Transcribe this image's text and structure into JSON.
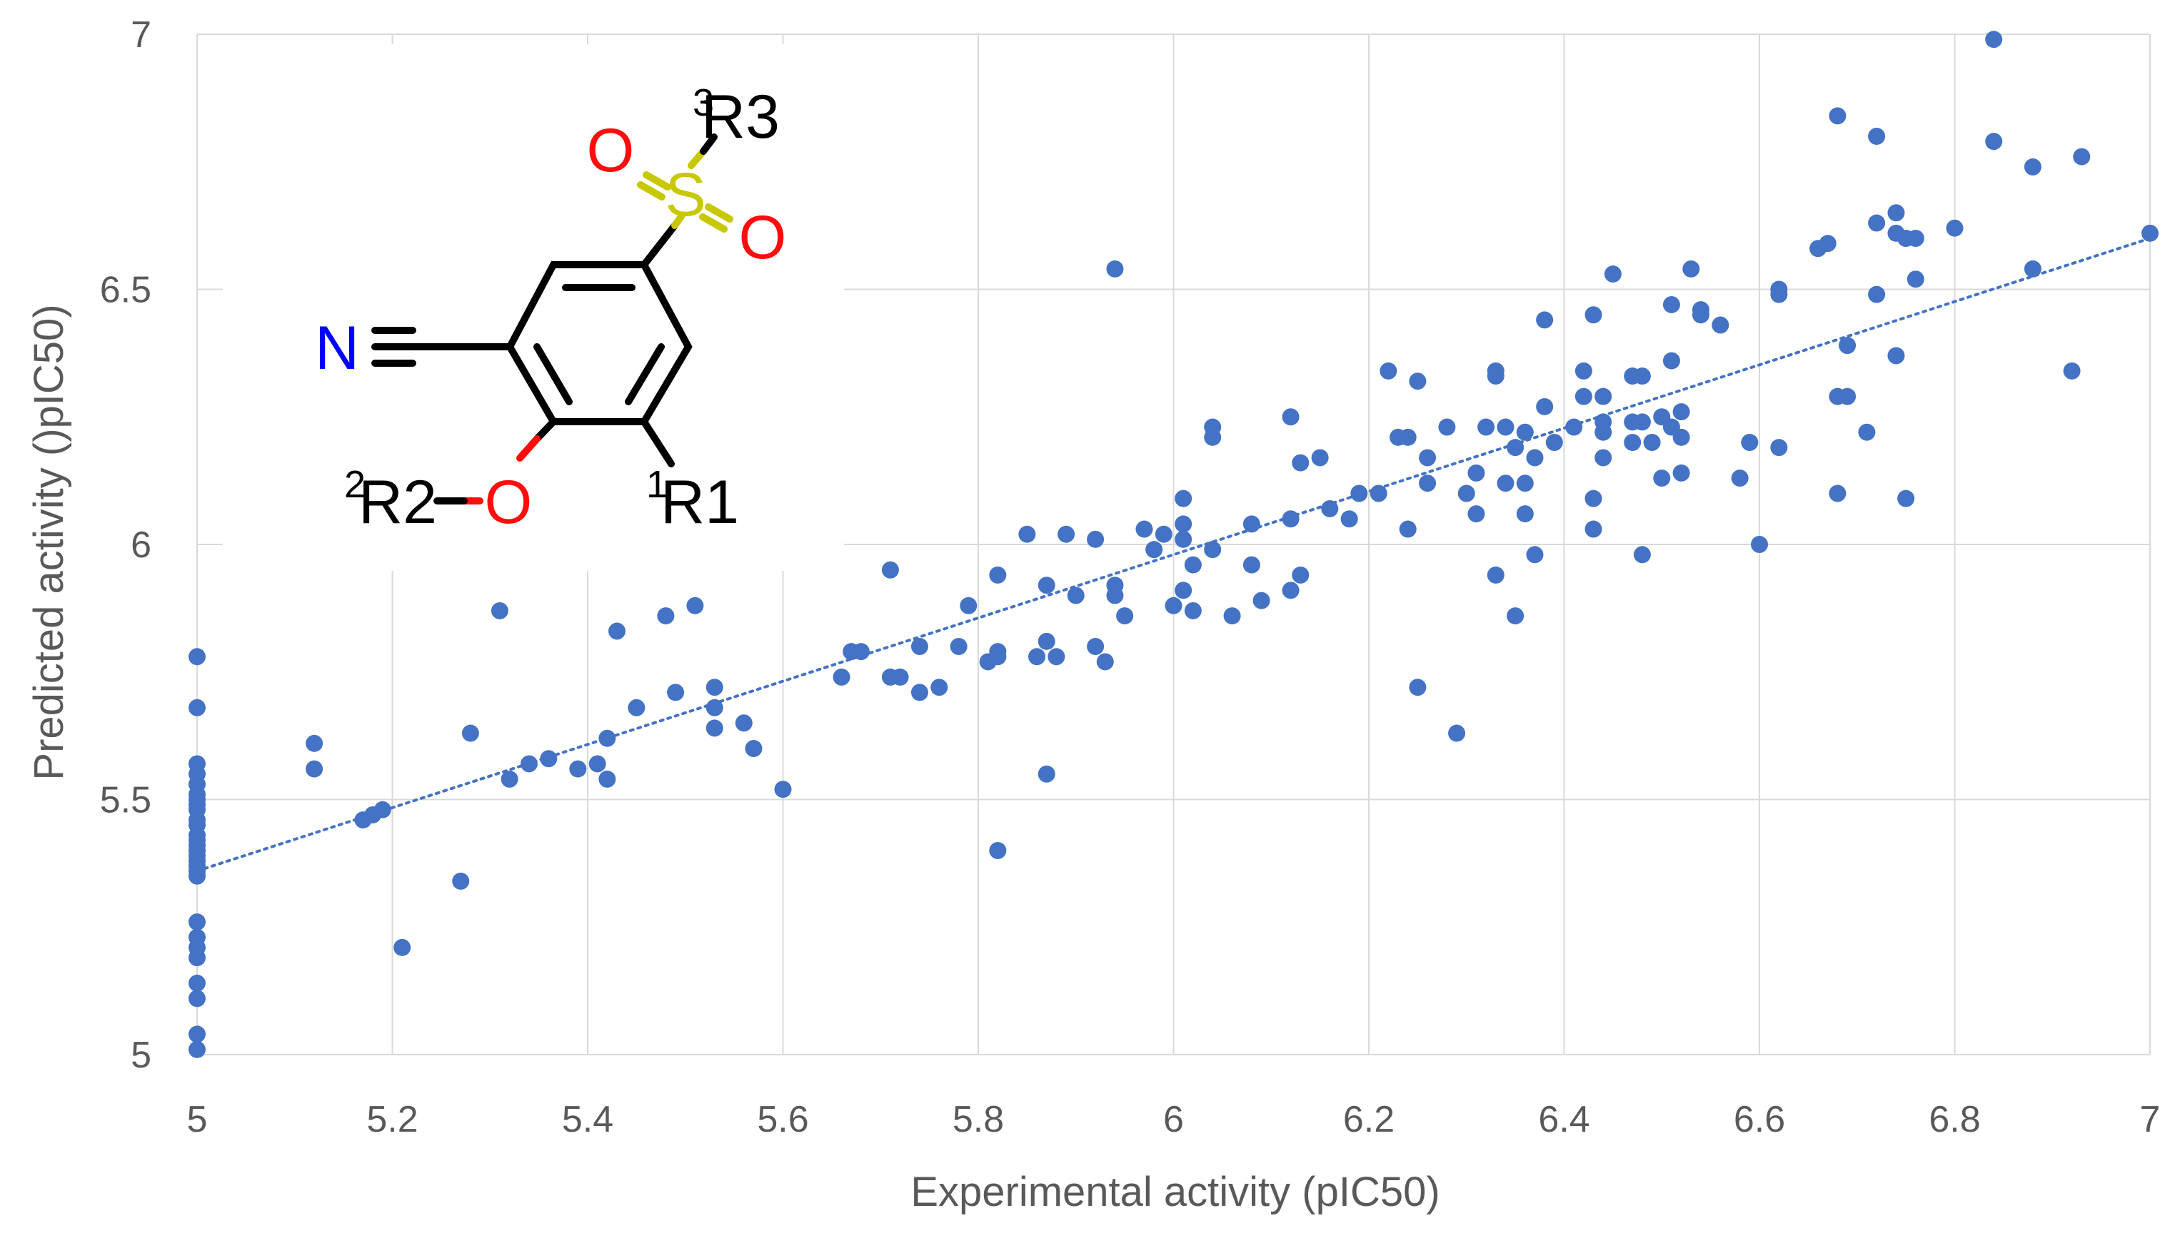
{
  "colors": {
    "point": "#4472C4",
    "trendline": "#4472C4",
    "grid": "#D9D9D9",
    "axis_text": "#595959",
    "oxygen": "#FF0D0D",
    "sulfur": "#C8C800",
    "nitrogen": "#0000FF",
    "bond": "#000000"
  },
  "chart_data": {
    "type": "scatter",
    "title": "",
    "xlabel": "Experimental activity (pIC50)",
    "ylabel": "Predicted activity ()pIC50)",
    "xlim": [
      5,
      7
    ],
    "ylim": [
      5,
      7
    ],
    "xticks": [
      "5",
      "5.2",
      "5.4",
      "5.6",
      "5.8",
      "6",
      "6.2",
      "6.4",
      "6.6",
      "6.8",
      "7"
    ],
    "yticks": [
      "5",
      "5.5",
      "6",
      "6.5",
      "7"
    ],
    "grid": true,
    "legend": "none",
    "trendline": {
      "type": "linear",
      "style": "dotted",
      "x": [
        5,
        7
      ],
      "y": [
        5.36,
        6.6
      ]
    },
    "series": [
      {
        "name": "compounds",
        "points": [
          [
            5.0,
            5.78
          ],
          [
            5.0,
            5.68
          ],
          [
            5.0,
            5.57
          ],
          [
            5.0,
            5.55
          ],
          [
            5.0,
            5.53
          ],
          [
            5.0,
            5.51
          ],
          [
            5.0,
            5.5
          ],
          [
            5.0,
            5.49
          ],
          [
            5.0,
            5.48
          ],
          [
            5.0,
            5.46
          ],
          [
            5.0,
            5.45
          ],
          [
            5.0,
            5.43
          ],
          [
            5.0,
            5.42
          ],
          [
            5.0,
            5.41
          ],
          [
            5.0,
            5.4
          ],
          [
            5.0,
            5.39
          ],
          [
            5.0,
            5.38
          ],
          [
            5.0,
            5.37
          ],
          [
            5.0,
            5.36
          ],
          [
            5.0,
            5.35
          ],
          [
            5.0,
            5.26
          ],
          [
            5.0,
            5.23
          ],
          [
            5.0,
            5.21
          ],
          [
            5.0,
            5.19
          ],
          [
            5.0,
            5.14
          ],
          [
            5.0,
            5.11
          ],
          [
            5.0,
            5.04
          ],
          [
            5.0,
            5.01
          ],
          [
            5.12,
            5.61
          ],
          [
            5.12,
            5.56
          ],
          [
            5.17,
            5.46
          ],
          [
            5.18,
            5.47
          ],
          [
            5.19,
            5.48
          ],
          [
            5.21,
            5.21
          ],
          [
            5.27,
            5.34
          ],
          [
            5.28,
            5.63
          ],
          [
            5.31,
            5.87
          ],
          [
            5.32,
            5.54
          ],
          [
            5.34,
            5.57
          ],
          [
            5.36,
            5.58
          ],
          [
            5.39,
            5.56
          ],
          [
            5.41,
            5.57
          ],
          [
            5.42,
            5.62
          ],
          [
            5.42,
            5.54
          ],
          [
            5.43,
            5.83
          ],
          [
            5.45,
            5.68
          ],
          [
            5.48,
            5.86
          ],
          [
            5.49,
            5.71
          ],
          [
            5.51,
            5.88
          ],
          [
            5.53,
            5.72
          ],
          [
            5.53,
            5.68
          ],
          [
            5.53,
            5.64
          ],
          [
            5.56,
            5.65
          ],
          [
            5.57,
            5.6
          ],
          [
            5.6,
            5.52
          ],
          [
            5.66,
            5.74
          ],
          [
            5.67,
            5.79
          ],
          [
            5.68,
            5.79
          ],
          [
            5.71,
            5.95
          ],
          [
            5.71,
            5.74
          ],
          [
            5.72,
            5.74
          ],
          [
            5.74,
            5.71
          ],
          [
            5.74,
            5.8
          ],
          [
            5.76,
            5.72
          ],
          [
            5.78,
            5.8
          ],
          [
            5.79,
            5.88
          ],
          [
            5.81,
            5.77
          ],
          [
            5.82,
            5.79
          ],
          [
            5.82,
            5.78
          ],
          [
            5.82,
            5.94
          ],
          [
            5.82,
            5.4
          ],
          [
            5.85,
            6.02
          ],
          [
            5.86,
            5.78
          ],
          [
            5.87,
            5.92
          ],
          [
            5.87,
            5.81
          ],
          [
            5.87,
            5.55
          ],
          [
            5.88,
            5.78
          ],
          [
            5.89,
            6.02
          ],
          [
            5.9,
            5.9
          ],
          [
            5.92,
            6.01
          ],
          [
            5.92,
            5.8
          ],
          [
            5.93,
            5.77
          ],
          [
            5.94,
            6.54
          ],
          [
            5.94,
            5.92
          ],
          [
            5.94,
            5.9
          ],
          [
            5.95,
            5.86
          ],
          [
            5.97,
            6.03
          ],
          [
            5.98,
            5.99
          ],
          [
            5.99,
            6.02
          ],
          [
            6.0,
            5.88
          ],
          [
            6.01,
            6.09
          ],
          [
            6.01,
            6.04
          ],
          [
            6.01,
            6.01
          ],
          [
            6.01,
            5.91
          ],
          [
            6.02,
            5.96
          ],
          [
            6.02,
            5.87
          ],
          [
            6.04,
            6.23
          ],
          [
            6.04,
            6.21
          ],
          [
            6.04,
            5.99
          ],
          [
            6.06,
            5.86
          ],
          [
            6.08,
            6.04
          ],
          [
            6.08,
            5.96
          ],
          [
            6.09,
            5.89
          ],
          [
            6.12,
            6.25
          ],
          [
            6.12,
            6.05
          ],
          [
            6.12,
            5.91
          ],
          [
            6.13,
            6.16
          ],
          [
            6.13,
            5.94
          ],
          [
            6.15,
            6.17
          ],
          [
            6.16,
            6.07
          ],
          [
            6.18,
            6.05
          ],
          [
            6.19,
            6.1
          ],
          [
            6.21,
            6.1
          ],
          [
            6.22,
            6.34
          ],
          [
            6.23,
            6.21
          ],
          [
            6.24,
            6.21
          ],
          [
            6.24,
            6.03
          ],
          [
            6.25,
            6.32
          ],
          [
            6.25,
            5.72
          ],
          [
            6.26,
            6.17
          ],
          [
            6.26,
            6.12
          ],
          [
            6.28,
            6.23
          ],
          [
            6.29,
            5.63
          ],
          [
            6.3,
            6.1
          ],
          [
            6.31,
            6.14
          ],
          [
            6.31,
            6.06
          ],
          [
            6.32,
            6.23
          ],
          [
            6.33,
            6.34
          ],
          [
            6.33,
            6.33
          ],
          [
            6.33,
            5.94
          ],
          [
            6.34,
            6.23
          ],
          [
            6.34,
            6.12
          ],
          [
            6.35,
            6.19
          ],
          [
            6.35,
            5.86
          ],
          [
            6.36,
            6.22
          ],
          [
            6.36,
            6.12
          ],
          [
            6.36,
            6.06
          ],
          [
            6.37,
            6.17
          ],
          [
            6.37,
            5.98
          ],
          [
            6.38,
            6.44
          ],
          [
            6.38,
            6.27
          ],
          [
            6.39,
            6.2
          ],
          [
            6.41,
            6.23
          ],
          [
            6.42,
            6.34
          ],
          [
            6.42,
            6.29
          ],
          [
            6.43,
            6.45
          ],
          [
            6.43,
            6.09
          ],
          [
            6.43,
            6.03
          ],
          [
            6.44,
            6.29
          ],
          [
            6.44,
            6.24
          ],
          [
            6.44,
            6.22
          ],
          [
            6.44,
            6.17
          ],
          [
            6.45,
            6.53
          ],
          [
            6.47,
            6.33
          ],
          [
            6.47,
            6.24
          ],
          [
            6.47,
            6.2
          ],
          [
            6.48,
            6.33
          ],
          [
            6.48,
            6.24
          ],
          [
            6.48,
            5.98
          ],
          [
            6.49,
            6.2
          ],
          [
            6.5,
            6.25
          ],
          [
            6.5,
            6.13
          ],
          [
            6.51,
            6.47
          ],
          [
            6.51,
            6.36
          ],
          [
            6.51,
            6.23
          ],
          [
            6.52,
            6.26
          ],
          [
            6.52,
            6.21
          ],
          [
            6.52,
            6.14
          ],
          [
            6.53,
            6.54
          ],
          [
            6.54,
            6.46
          ],
          [
            6.54,
            6.45
          ],
          [
            6.56,
            6.43
          ],
          [
            6.58,
            6.13
          ],
          [
            6.59,
            6.2
          ],
          [
            6.6,
            6.0
          ],
          [
            6.62,
            6.5
          ],
          [
            6.62,
            6.49
          ],
          [
            6.62,
            6.19
          ],
          [
            6.66,
            6.58
          ],
          [
            6.67,
            6.59
          ],
          [
            6.68,
            6.84
          ],
          [
            6.68,
            6.29
          ],
          [
            6.68,
            6.1
          ],
          [
            6.69,
            6.39
          ],
          [
            6.69,
            6.29
          ],
          [
            6.71,
            6.22
          ],
          [
            6.72,
            6.8
          ],
          [
            6.72,
            6.63
          ],
          [
            6.72,
            6.49
          ],
          [
            6.74,
            6.65
          ],
          [
            6.74,
            6.61
          ],
          [
            6.74,
            6.37
          ],
          [
            6.75,
            6.6
          ],
          [
            6.75,
            6.09
          ],
          [
            6.76,
            6.6
          ],
          [
            6.76,
            6.52
          ],
          [
            6.8,
            6.62
          ],
          [
            6.84,
            6.99
          ],
          [
            6.84,
            6.79
          ],
          [
            6.88,
            6.74
          ],
          [
            6.88,
            6.54
          ],
          [
            6.92,
            6.34
          ],
          [
            6.93,
            6.76
          ],
          [
            7.0,
            6.61
          ]
        ]
      }
    ]
  },
  "structure": {
    "name": "substituted benzonitrile core",
    "labels": {
      "o_top": "O",
      "s": "S",
      "o_right": "O",
      "r3_sup": "3",
      "r3": "R3",
      "n": "N",
      "r2_sup": "2",
      "r2": "R2",
      "o_ether": "O",
      "r1_sup": "1",
      "r1": "R1"
    }
  }
}
